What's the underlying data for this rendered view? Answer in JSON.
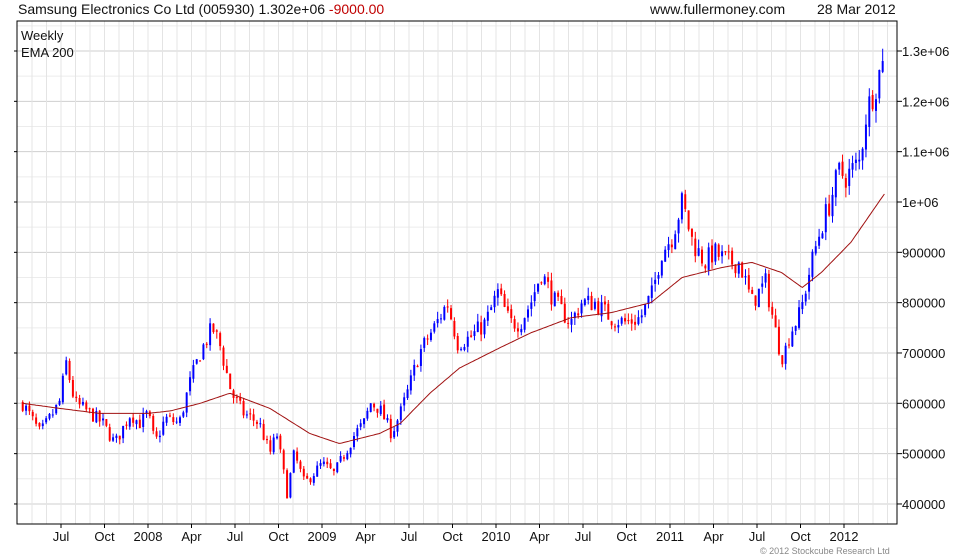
{
  "header": {
    "title": "Samsung Electronics Co Ltd (005930) 1.302e+06",
    "change": "-9000.00",
    "site": "www.fullermoney.com",
    "date": "28 Mar 2012"
  },
  "footer": {
    "copyright": "© 2012 Stockcube Research Ltd"
  },
  "colors": {
    "up": "#0000ff",
    "down": "#ff0000",
    "ema": "#a01010",
    "grid": "#d8d8d8"
  },
  "chart_data": {
    "type": "candlestick",
    "title": "Samsung Electronics Co Ltd (005930)",
    "legend": [
      {
        "name": "Weekly",
        "color": "#0000dd"
      },
      {
        "name": "EMA 200",
        "color": "#a01010"
      }
    ],
    "legend_position": "top-left",
    "xlim": [
      2007.2,
      2012.32
    ],
    "ylim": [
      360000,
      1360000
    ],
    "x_ticks": [
      {
        "t": 2007.5,
        "label": "Jul"
      },
      {
        "t": 2007.75,
        "label": "Oct"
      },
      {
        "t": 2008.0,
        "label": "2008"
      },
      {
        "t": 2008.25,
        "label": "Apr"
      },
      {
        "t": 2008.5,
        "label": "Jul"
      },
      {
        "t": 2008.75,
        "label": "Oct"
      },
      {
        "t": 2009.0,
        "label": "2009"
      },
      {
        "t": 2009.25,
        "label": "Apr"
      },
      {
        "t": 2009.5,
        "label": "Jul"
      },
      {
        "t": 2009.75,
        "label": "Oct"
      },
      {
        "t": 2010.0,
        "label": "2010"
      },
      {
        "t": 2010.25,
        "label": "Apr"
      },
      {
        "t": 2010.5,
        "label": "Jul"
      },
      {
        "t": 2010.75,
        "label": "Oct"
      },
      {
        "t": 2011.0,
        "label": "2011"
      },
      {
        "t": 2011.25,
        "label": "Apr"
      },
      {
        "t": 2011.5,
        "label": "Jul"
      },
      {
        "t": 2011.75,
        "label": "Oct"
      },
      {
        "t": 2012.0,
        "label": "2012"
      }
    ],
    "y_ticks": [
      {
        "v": 400000,
        "label": "400000"
      },
      {
        "v": 500000,
        "label": "500000"
      },
      {
        "v": 600000,
        "label": "600000"
      },
      {
        "v": 700000,
        "label": "700000"
      },
      {
        "v": 800000,
        "label": "800000"
      },
      {
        "v": 900000,
        "label": "900000"
      },
      {
        "v": 1000000,
        "label": "1e+06"
      },
      {
        "v": 1100000,
        "label": "1.1e+06"
      },
      {
        "v": 1200000,
        "label": "1.2e+06"
      },
      {
        "v": 1300000,
        "label": "1.3e+06"
      }
    ],
    "close_anchors": [
      [
        2007.28,
        600000
      ],
      [
        2007.38,
        540000
      ],
      [
        2007.49,
        600000
      ],
      [
        2007.53,
        680000
      ],
      [
        2007.58,
        600000
      ],
      [
        2007.67,
        580000
      ],
      [
        2007.74,
        560000
      ],
      [
        2007.81,
        520000
      ],
      [
        2007.9,
        580000
      ],
      [
        2007.95,
        560000
      ],
      [
        2008.0,
        580000
      ],
      [
        2008.04,
        520000
      ],
      [
        2008.1,
        570000
      ],
      [
        2008.18,
        560000
      ],
      [
        2008.24,
        640000
      ],
      [
        2008.3,
        700000
      ],
      [
        2008.37,
        750000
      ],
      [
        2008.41,
        720000
      ],
      [
        2008.48,
        620000
      ],
      [
        2008.55,
        580000
      ],
      [
        2008.64,
        560000
      ],
      [
        2008.7,
        500000
      ],
      [
        2008.74,
        540000
      ],
      [
        2008.8,
        420000
      ],
      [
        2008.84,
        500000
      ],
      [
        2008.9,
        440000
      ],
      [
        2009.0,
        480000
      ],
      [
        2009.07,
        460000
      ],
      [
        2009.13,
        500000
      ],
      [
        2009.19,
        540000
      ],
      [
        2009.24,
        560000
      ],
      [
        2009.28,
        600000
      ],
      [
        2009.33,
        590000
      ],
      [
        2009.4,
        540000
      ],
      [
        2009.45,
        580000
      ],
      [
        2009.49,
        620000
      ],
      [
        2009.56,
        700000
      ],
      [
        2009.66,
        760000
      ],
      [
        2009.72,
        800000
      ],
      [
        2009.78,
        720000
      ],
      [
        2009.85,
        730000
      ],
      [
        2009.94,
        760000
      ],
      [
        2010.01,
        820000
      ],
      [
        2010.08,
        760000
      ],
      [
        2010.14,
        760000
      ],
      [
        2010.2,
        800000
      ],
      [
        2010.26,
        860000
      ],
      [
        2010.34,
        800000
      ],
      [
        2010.43,
        760000
      ],
      [
        2010.49,
        800000
      ],
      [
        2010.57,
        800000
      ],
      [
        2010.66,
        770000
      ],
      [
        2010.75,
        760000
      ],
      [
        2010.83,
        770000
      ],
      [
        2010.9,
        820000
      ],
      [
        2010.95,
        900000
      ],
      [
        2011.01,
        930000
      ],
      [
        2011.07,
        1000000
      ],
      [
        2011.13,
        920000
      ],
      [
        2011.2,
        880000
      ],
      [
        2011.25,
        900000
      ],
      [
        2011.34,
        880000
      ],
      [
        2011.4,
        880000
      ],
      [
        2011.47,
        800000
      ],
      [
        2011.55,
        840000
      ],
      [
        2011.62,
        720000
      ],
      [
        2011.65,
        690000
      ],
      [
        2011.69,
        740000
      ],
      [
        2011.75,
        780000
      ],
      [
        2011.8,
        860000
      ],
      [
        2011.86,
        940000
      ],
      [
        2011.92,
        1000000
      ],
      [
        2011.97,
        1060000
      ],
      [
        2012.01,
        1050000
      ],
      [
        2012.09,
        1080000
      ],
      [
        2012.13,
        1180000
      ],
      [
        2012.19,
        1240000
      ],
      [
        2012.24,
        1302000
      ]
    ],
    "ema_anchors": [
      [
        2007.28,
        600000
      ],
      [
        2007.49,
        590000
      ],
      [
        2007.72,
        580000
      ],
      [
        2008.0,
        580000
      ],
      [
        2008.13,
        585000
      ],
      [
        2008.3,
        600000
      ],
      [
        2008.47,
        620000
      ],
      [
        2008.7,
        590000
      ],
      [
        2008.93,
        540000
      ],
      [
        2009.1,
        520000
      ],
      [
        2009.33,
        540000
      ],
      [
        2009.45,
        560000
      ],
      [
        2009.62,
        620000
      ],
      [
        2009.79,
        670000
      ],
      [
        2010.02,
        710000
      ],
      [
        2010.2,
        740000
      ],
      [
        2010.43,
        770000
      ],
      [
        2010.66,
        780000
      ],
      [
        2010.89,
        800000
      ],
      [
        2011.07,
        850000
      ],
      [
        2011.3,
        870000
      ],
      [
        2011.47,
        880000
      ],
      [
        2011.64,
        860000
      ],
      [
        2011.76,
        830000
      ],
      [
        2011.87,
        860000
      ],
      [
        2012.04,
        920000
      ],
      [
        2012.24,
        1020000
      ]
    ]
  }
}
